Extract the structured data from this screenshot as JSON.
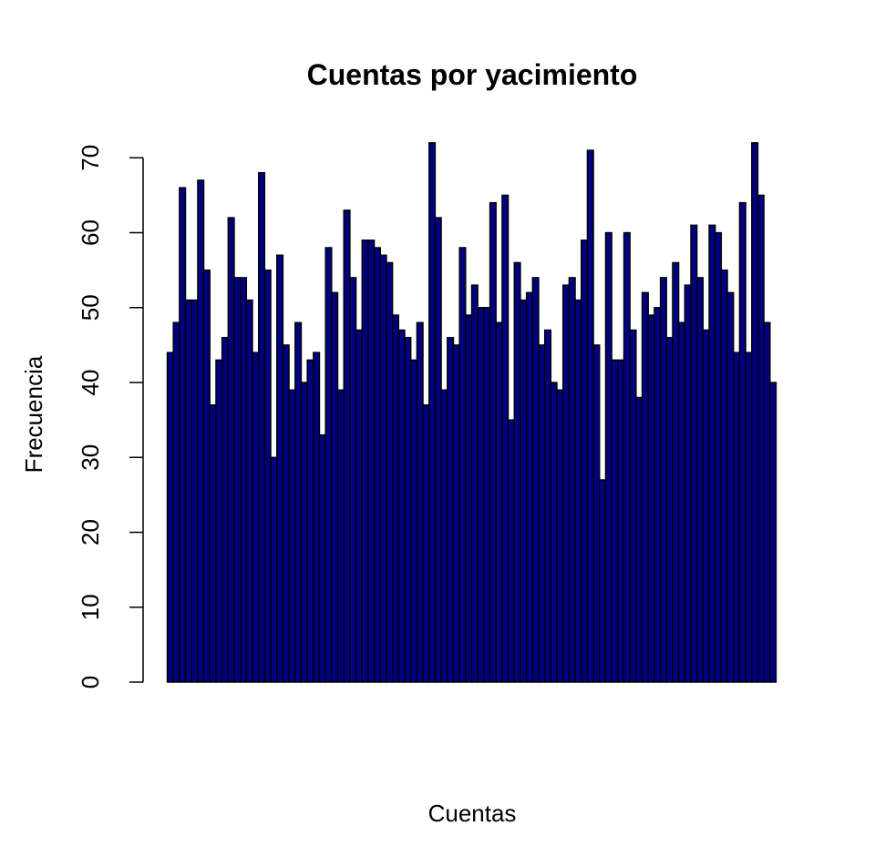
{
  "chart_data": {
    "type": "bar",
    "title": "Cuentas por yacimiento",
    "xlabel": "Cuentas",
    "ylabel": "Frecuencia",
    "ylim": [
      0,
      72
    ],
    "yticks": [
      0,
      10,
      20,
      30,
      40,
      50,
      60,
      70
    ],
    "grid": false,
    "legend": "none",
    "bar_fill": "#000080",
    "bar_stroke": "#000000",
    "values": [
      44,
      48,
      66,
      51,
      51,
      67,
      55,
      37,
      43,
      46,
      62,
      54,
      54,
      51,
      44,
      68,
      55,
      30,
      57,
      45,
      39,
      48,
      40,
      43,
      44,
      33,
      58,
      52,
      39,
      63,
      54,
      47,
      59,
      59,
      58,
      57,
      56,
      49,
      47,
      46,
      43,
      48,
      37,
      72,
      62,
      39,
      46,
      45,
      58,
      49,
      53,
      50,
      50,
      64,
      48,
      65,
      35,
      56,
      51,
      52,
      54,
      45,
      47,
      40,
      39,
      53,
      54,
      51,
      59,
      71,
      45,
      27,
      60,
      43,
      43,
      60,
      47,
      38,
      52,
      49,
      50,
      54,
      46,
      56,
      48,
      53,
      61,
      54,
      47,
      61,
      60,
      55,
      52,
      44,
      64,
      44,
      72,
      65,
      48,
      40
    ]
  }
}
